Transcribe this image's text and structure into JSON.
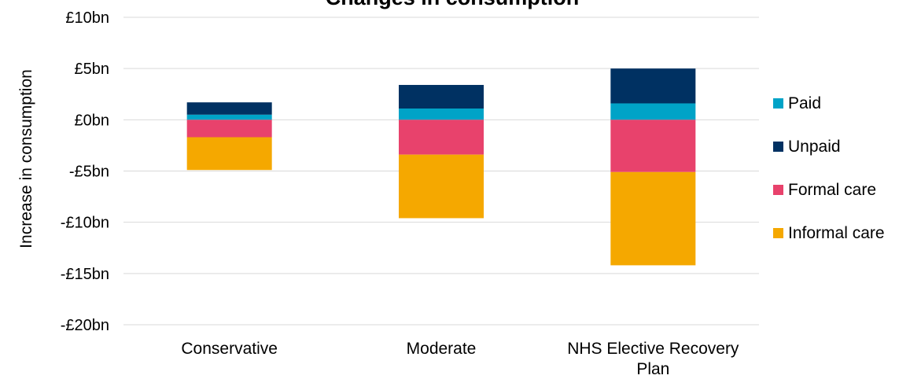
{
  "chart_data": {
    "type": "bar",
    "stacked": true,
    "title": "Changes in consumption",
    "ylabel": "Increase in consumption",
    "xlabel": "",
    "ylim": [
      -20,
      10
    ],
    "y_ticks": [
      10,
      5,
      0,
      -5,
      -10,
      -15,
      -20
    ],
    "y_tick_labels": [
      "£10bn",
      "£5bn",
      "£0bn",
      "-£5bn",
      "-£10bn",
      "-£15bn",
      "-£20bn"
    ],
    "categories": [
      "Conservative",
      "Moderate",
      "NHS Elective Recovery Plan"
    ],
    "category_lines": [
      [
        "Conservative"
      ],
      [
        "Moderate"
      ],
      [
        "NHS Elective Recovery",
        "Plan"
      ]
    ],
    "unit": "£bn",
    "grid": true,
    "legend_position": "right",
    "series": [
      {
        "name": "Paid",
        "color": "#00a3c7",
        "values": [
          0.5,
          1.1,
          1.6
        ]
      },
      {
        "name": "Unpaid",
        "color": "#003162",
        "values": [
          1.2,
          2.3,
          3.4
        ]
      },
      {
        "name": "Formal care",
        "color": "#e8426c",
        "values": [
          -1.7,
          -3.4,
          -5.1
        ]
      },
      {
        "name": "Informal care",
        "color": "#f5a800",
        "values": [
          -3.2,
          -6.2,
          -9.1
        ]
      }
    ]
  },
  "legend_items": [
    "Paid",
    "Unpaid",
    "Formal care",
    "Informal care"
  ]
}
